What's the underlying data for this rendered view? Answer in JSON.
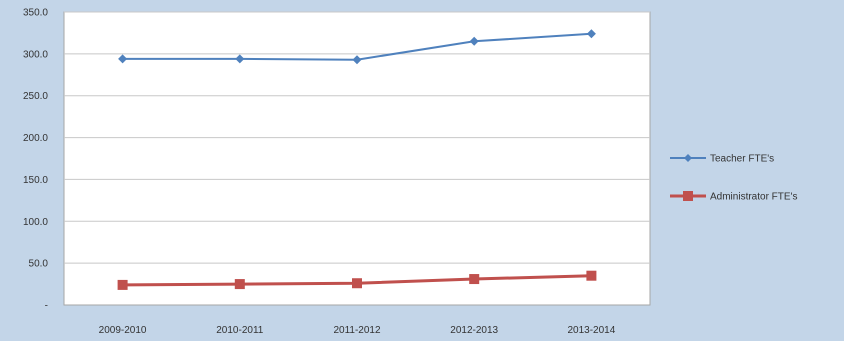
{
  "chart_data": {
    "type": "line",
    "categories": [
      "2009-2010",
      "2010-2011",
      "2011-2012",
      "2012-2013",
      "2013-2014"
    ],
    "series": [
      {
        "name": "Teacher FTE's",
        "values": [
          294,
          294,
          293,
          315,
          324
        ],
        "color": "#4f81bd",
        "marker": "diamond"
      },
      {
        "name": "Administrator FTE's",
        "values": [
          24,
          25,
          26,
          31,
          35
        ],
        "color": "#c0504d",
        "marker": "square"
      }
    ],
    "ylim": [
      0,
      350
    ],
    "yticks": [
      "-",
      "50.0",
      "100.0",
      "150.0",
      "200.0",
      "250.0",
      "300.0",
      "350.0"
    ],
    "grid": true,
    "legend": "right"
  }
}
